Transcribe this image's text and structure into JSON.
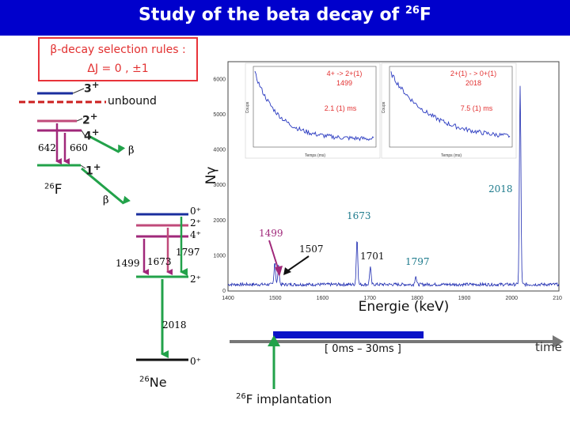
{
  "title": {
    "main": "Study of the beta decay of ",
    "sup": "26",
    "tail": "F"
  },
  "selection_rules": {
    "line1": "β-decay selection rules :",
    "line2": "ΔJ = 0 , ±1"
  },
  "f26": {
    "nucleus_sup": "26",
    "nucleus": "F",
    "levels": {
      "j3": "3",
      "j2": "2",
      "j4": "4",
      "j1": "1",
      "plus": "+"
    },
    "unbound": "unbound",
    "gamma_642": "642",
    "gamma_660": "660",
    "beta_upper": "β",
    "beta_lower": "β"
  },
  "ne26": {
    "nucleus_sup": "26",
    "nucleus": "Ne",
    "levels": {
      "top0": "0⁺",
      "top2": "2⁺",
      "top4": "4⁺",
      "mid2": "2⁺",
      "ground": "0⁺"
    },
    "gamma_1797": "1797",
    "gamma_1499": "1499",
    "gamma_1673": "1673",
    "gamma_2018": "2018"
  },
  "spectrum": {
    "x_axis_label": "Energie (keV)",
    "y_axis_label": "Nγ",
    "x_ticks": [
      "1400",
      "1500",
      "1600",
      "1700",
      "1800",
      "1900",
      "2000",
      "2100"
    ],
    "y_ticks": [
      "0",
      "1000",
      "2000",
      "3000",
      "4000",
      "5000",
      "6000"
    ],
    "peak_labels": {
      "p1499": "1499",
      "p1507": "1507",
      "p1673": "1673",
      "p1701": "1701",
      "p1797": "1797",
      "p2018": "2018"
    },
    "inset_left": {
      "label1": "4+ -> 2+(1)",
      "label2": "1499",
      "halflife": "2.1 (1) ms",
      "x_label": "Temps (ms)",
      "y_label": "Coups",
      "x_ticks": [
        "0",
        "10",
        "20",
        "30",
        "40",
        "50",
        "60",
        "70"
      ],
      "y_ticks": [
        "30",
        "40",
        "50",
        "60",
        "70",
        "80"
      ]
    },
    "inset_right": {
      "label1": "2+(1) - > 0+(1)",
      "label2": "2018",
      "halflife": "7.5 (1) ms",
      "x_label": "Temps (ms)",
      "y_label": "Coups",
      "x_ticks": [
        "0",
        "10",
        "20",
        "30",
        "40",
        "50",
        "60",
        "70"
      ],
      "y_ticks": [
        "100",
        "200",
        "300",
        "400",
        "500",
        "600",
        "700"
      ]
    }
  },
  "timeline": {
    "window": "[ 0ms – 30ms ]",
    "time_label": "time",
    "implant_sup": "26",
    "implant": "F implantation"
  },
  "colors": {
    "title_bg": "#0000cc",
    "red": "#e8333a",
    "green": "#22a24a",
    "purple": "#a0287a",
    "navy": "#1a2e9e",
    "arrow_gray": "#777777"
  }
}
